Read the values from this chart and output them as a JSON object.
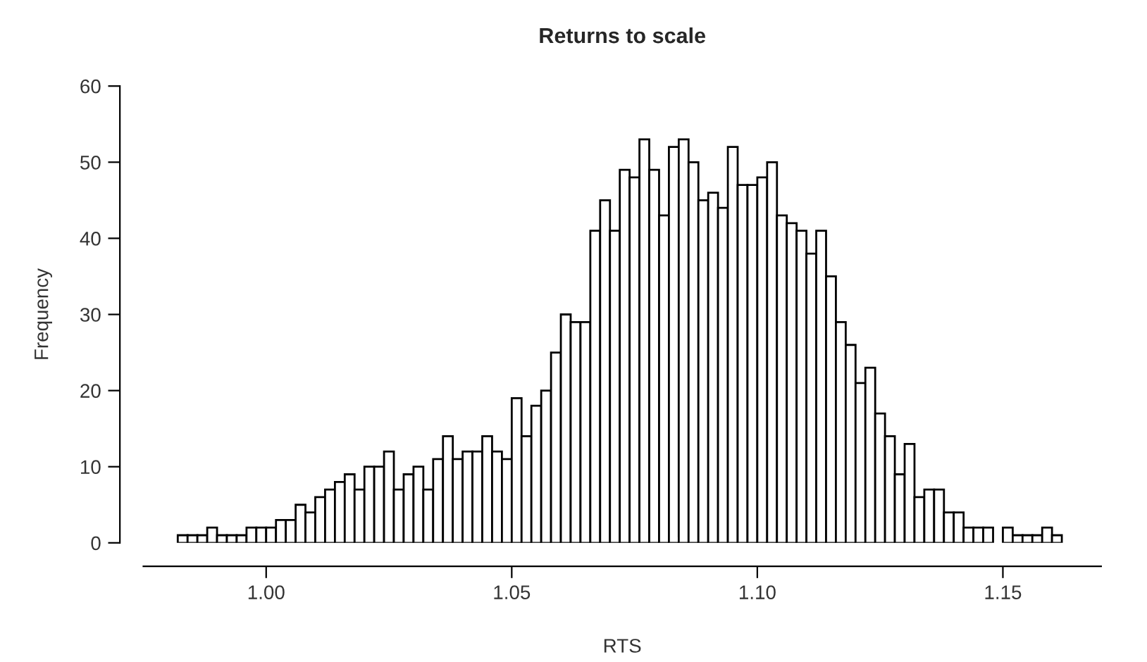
{
  "chart_data": {
    "type": "histogram",
    "title": "Returns to scale",
    "xlabel": "RTS",
    "ylabel": "Frequency",
    "bins": [
      0.982,
      0.984,
      0.986,
      0.988,
      0.99,
      0.992,
      0.994,
      0.996,
      0.998,
      1.0,
      1.002,
      1.004,
      1.006,
      1.008,
      1.01,
      1.012,
      1.014,
      1.016,
      1.018,
      1.02,
      1.022,
      1.024,
      1.026,
      1.028,
      1.03,
      1.032,
      1.034,
      1.036,
      1.038,
      1.04,
      1.042,
      1.044,
      1.046,
      1.048,
      1.05,
      1.052,
      1.054,
      1.056,
      1.058,
      1.06,
      1.062,
      1.064,
      1.066,
      1.068,
      1.07,
      1.072,
      1.074,
      1.076,
      1.078,
      1.08,
      1.082,
      1.084,
      1.086,
      1.088,
      1.09,
      1.092,
      1.094,
      1.096,
      1.098,
      1.1,
      1.102,
      1.104,
      1.106,
      1.108,
      1.11,
      1.112,
      1.114,
      1.116,
      1.118,
      1.12,
      1.122,
      1.124,
      1.126,
      1.128,
      1.13,
      1.132,
      1.134,
      1.136,
      1.138,
      1.14,
      1.142,
      1.144,
      1.146,
      1.148,
      1.15,
      1.152,
      1.154,
      1.156,
      1.158,
      1.16,
      1.162
    ],
    "values": [
      1,
      1,
      1,
      2,
      1,
      1,
      1,
      2,
      2,
      2,
      3,
      3,
      5,
      4,
      6,
      7,
      8,
      9,
      7,
      10,
      10,
      12,
      7,
      9,
      10,
      7,
      11,
      14,
      11,
      12,
      12,
      14,
      12,
      11,
      19,
      14,
      18,
      20,
      25,
      30,
      29,
      29,
      41,
      45,
      41,
      49,
      48,
      53,
      49,
      43,
      52,
      53,
      50,
      45,
      46,
      44,
      52,
      47,
      47,
      48,
      50,
      43,
      42,
      41,
      38,
      41,
      35,
      29,
      26,
      21,
      23,
      17,
      14,
      9,
      13,
      6,
      7,
      7,
      4,
      4,
      2,
      2,
      2,
      0,
      2,
      1,
      1,
      1,
      2,
      1
    ],
    "color": "#ffffff",
    "xlim": [
      0.975,
      1.17
    ],
    "xticks": [
      {
        "value": 1.0,
        "label": "1.00"
      },
      {
        "value": 1.05,
        "label": "1.05"
      },
      {
        "value": 1.1,
        "label": "1.10"
      },
      {
        "value": 1.15,
        "label": "1.15"
      }
    ],
    "ylim": [
      0,
      60
    ],
    "yticks": [
      0,
      10,
      20,
      30,
      40,
      50,
      60
    ],
    "grid": false
  }
}
